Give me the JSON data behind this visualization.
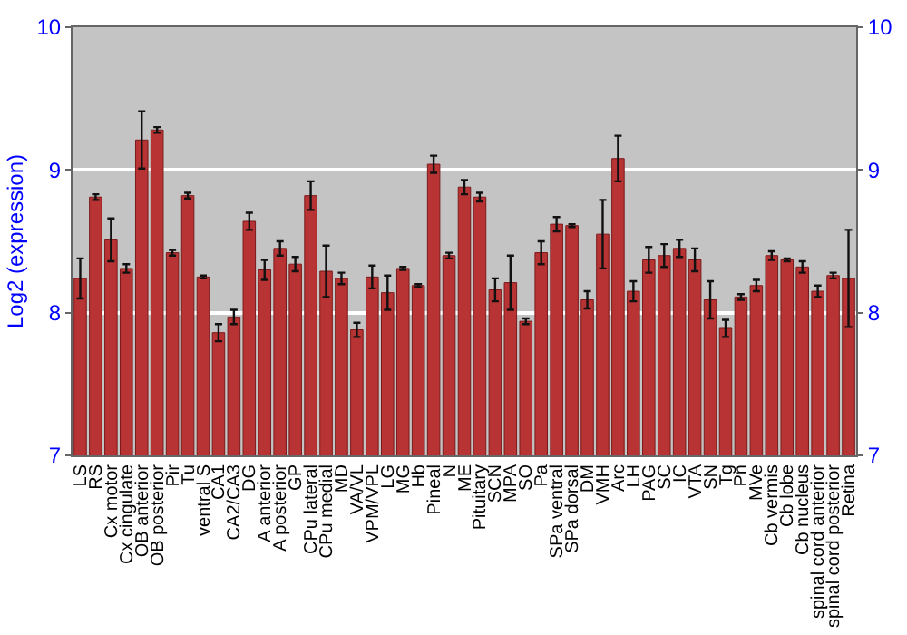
{
  "chart_data": {
    "type": "bar",
    "ylabel": "Log2 (expression)",
    "categories": [
      "LS",
      "RS",
      "Cx motor",
      "Cx cingulate",
      "OB anterior",
      "OB posterior",
      "Pir",
      "Tu",
      "ventral S",
      "CA1",
      "CA2/CA3",
      "DG",
      "A anterior",
      "A posterior",
      "GP",
      "CPu lateral",
      "CPu medial",
      "MD",
      "VA/VL",
      "VPM/VPL",
      "LG",
      "MG",
      "Hb",
      "Pineal",
      "N",
      "ME",
      "Pituitary",
      "SCN",
      "MPA",
      "SO",
      "Pa",
      "SPa ventral",
      "SPa dorsal",
      "DM",
      "VMH",
      "Arc",
      "LH",
      "PAG",
      "SC",
      "IC",
      "VTA",
      "SN",
      "Tg",
      "Pn",
      "MVe",
      "Cb vermis",
      "Cb lobe",
      "Cb nucleus",
      "spinal cord anterior",
      "spinal cord posterior",
      "Retina"
    ],
    "values": [
      8.24,
      8.81,
      8.51,
      8.31,
      9.21,
      9.28,
      8.42,
      8.82,
      8.25,
      7.86,
      7.97,
      8.64,
      8.3,
      8.45,
      8.34,
      8.82,
      8.29,
      8.24,
      7.88,
      8.25,
      8.14,
      8.31,
      8.19,
      9.04,
      8.4,
      8.88,
      8.81,
      8.16,
      8.21,
      7.94,
      8.42,
      8.62,
      8.61,
      8.09,
      8.55,
      9.08,
      8.15,
      8.37,
      8.4,
      8.45,
      8.37,
      8.09,
      7.89,
      8.11,
      8.19,
      8.4,
      8.37,
      8.32,
      8.15,
      8.26,
      8.24
    ],
    "errors": [
      0.14,
      0.02,
      0.15,
      0.03,
      0.2,
      0.02,
      0.02,
      0.02,
      0.01,
      0.06,
      0.05,
      0.06,
      0.07,
      0.05,
      0.05,
      0.1,
      0.18,
      0.04,
      0.05,
      0.08,
      0.12,
      0.01,
      0.01,
      0.06,
      0.02,
      0.05,
      0.03,
      0.08,
      0.19,
      0.02,
      0.08,
      0.05,
      0.01,
      0.06,
      0.24,
      0.16,
      0.07,
      0.09,
      0.08,
      0.06,
      0.08,
      0.13,
      0.06,
      0.02,
      0.04,
      0.03,
      0.01,
      0.04,
      0.04,
      0.02,
      0.34
    ],
    "color": "#b83333",
    "ylim": [
      7,
      10
    ],
    "yticks": [
      7,
      8,
      9,
      10
    ],
    "y2lim": [
      7,
      10
    ],
    "y2ticks": [
      7,
      8,
      9,
      10
    ],
    "grid": "y"
  }
}
